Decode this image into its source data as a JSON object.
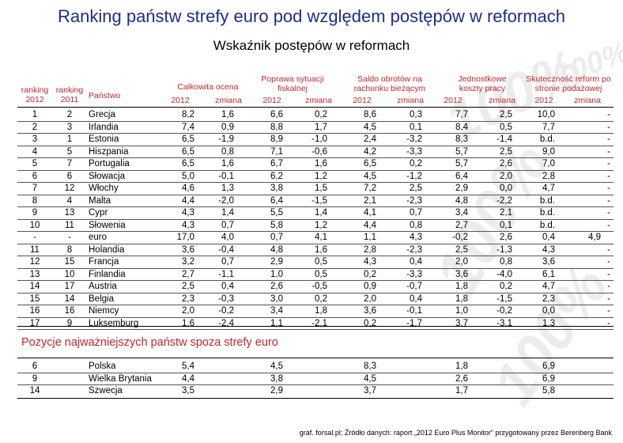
{
  "title": "Ranking państw strefy euro pod względem postępów w reformach",
  "subtitle": "Wskaźnik postępów w reformach",
  "headers": {
    "rank2012": "ranking 2012",
    "rank2011": "ranking 2011",
    "country": "Państwo",
    "overall": "Całkowita ocena",
    "fiscal": "Poprawa sytuacji fiskalnej",
    "current_account": "Saldo obrotów na rachunku bieżącym",
    "labor_costs": "Jednostkowe koszty pracy",
    "supply_reforms": "Skuteczność reform po stronie podażowej",
    "year": "2012",
    "change": "zmiana"
  },
  "rows": [
    [
      "1",
      "2",
      "Grecja",
      "8,2",
      "1,6",
      "6,6",
      "0,2",
      "8,6",
      "0,3",
      "7,7",
      "2,5",
      "10,0",
      "-"
    ],
    [
      "2",
      "3",
      "Irlandia",
      "7,4",
      "0,9",
      "8,8",
      "1,7",
      "4,5",
      "0,1",
      "8,4",
      "0,5",
      "7,7",
      "-"
    ],
    [
      "3",
      "1",
      "Estonia",
      "6,5",
      "-1,9",
      "8,9",
      "-1,0",
      "2,4",
      "-3,2",
      "8,3",
      "-1,4",
      "b.d.",
      "-"
    ],
    [
      "4",
      "5",
      "Hiszpania",
      "6,5",
      "0,8",
      "7,1",
      "-0,6",
      "4,2",
      "-3,3",
      "5,7",
      "2,5",
      "9,0",
      "-"
    ],
    [
      "5",
      "7",
      "Portugalia",
      "6,5",
      "1,6",
      "6,7",
      "1,6",
      "6,5",
      "0,2",
      "5,7",
      "2,6",
      "7,0",
      "-"
    ],
    [
      "6",
      "6",
      "Słowacja",
      "5,0",
      "-0,1",
      "6,2",
      "1,2",
      "4,5",
      "-1,2",
      "6,4",
      "2,0",
      "2,8",
      "-"
    ],
    [
      "7",
      "12",
      "Włochy",
      "4,6",
      "1,3",
      "3,8",
      "1,5",
      "7,2",
      "2,5",
      "2,9",
      "0,0",
      "4,7",
      "-"
    ],
    [
      "8",
      "4",
      "Malta",
      "4,4",
      "-2,0",
      "6,4",
      "-1,5",
      "2,1",
      "-2,3",
      "4,8",
      "-2,2",
      "b.d.",
      "-"
    ],
    [
      "9",
      "13",
      "Cypr",
      "4,3",
      "1,4",
      "5,5",
      "1,4",
      "4,1",
      "0,7",
      "3,4",
      "2,1",
      "b.d.",
      "-"
    ],
    [
      "10",
      "11",
      "Słowenia",
      "4,3",
      "0,7",
      "5,8",
      "1,2",
      "4,4",
      "0,8",
      "2,7",
      "0,1",
      "b.d.",
      "-"
    ],
    [
      "-",
      "-",
      "euro",
      "17,0",
      "4,0",
      "0,7",
      "4,1",
      "1,1",
      "4,3",
      "-0,2",
      "2,6",
      "0,4",
      "4,9"
    ],
    [
      "11",
      "8",
      "Holandia",
      "3,6",
      "-0,4",
      "4,8",
      "1,6",
      "2,8",
      "-2,3",
      "2,5",
      "-1,3",
      "4,3",
      "-"
    ],
    [
      "12",
      "15",
      "Francja",
      "3,2",
      "0,7",
      "2,9",
      "0,5",
      "4,3",
      "0,4",
      "2,0",
      "0,8",
      "3,6",
      "-"
    ],
    [
      "13",
      "10",
      "Finlandia",
      "2,7",
      "-1,1",
      "1,0",
      "0,5",
      "0,2",
      "-3,3",
      "3,6",
      "-4,0",
      "6,1",
      "-"
    ],
    [
      "14",
      "17",
      "Austria",
      "2,5",
      "0,4",
      "2,6",
      "-0,5",
      "0,9",
      "-0,7",
      "1,8",
      "0,2",
      "4,7",
      "-"
    ],
    [
      "15",
      "14",
      "Belgia",
      "2,3",
      "-0,3",
      "3,0",
      "0,2",
      "2,0",
      "0,4",
      "1,8",
      "-1,5",
      "2,3",
      "-"
    ],
    [
      "16",
      "16",
      "Niemcy",
      "2,0",
      "-0,2",
      "3,4",
      "1,8",
      "3,6",
      "-0,1",
      "1,0",
      "-0,2",
      "0,0",
      "-"
    ],
    [
      "17",
      "9",
      "Luksemburg",
      "1,6",
      "-2,4",
      "1,1",
      "-2,1",
      "0,2",
      "-1,7",
      "3,7",
      "-3,1",
      "1,3",
      "-"
    ]
  ],
  "section_title": "Pozycje najważniejszych państw spoza strefy euro",
  "non_euro_rows": [
    [
      "6",
      "Polska",
      "5,4",
      "4,5",
      "8,3",
      "1,8",
      "6,9"
    ],
    [
      "9",
      "Wielka Brytania",
      "4,4",
      "3,8",
      "4,5",
      "2,6",
      "6,9"
    ],
    [
      "14",
      "Szwecja",
      "3,5",
      "2,9",
      "3,7",
      "1,7",
      "5,8"
    ]
  ],
  "watermark": "100%",
  "source": "graf. forsal.pl; Źródło danych: raport „2012 Euro Plus Monitor” przygotowany przez Berenberg Bank"
}
